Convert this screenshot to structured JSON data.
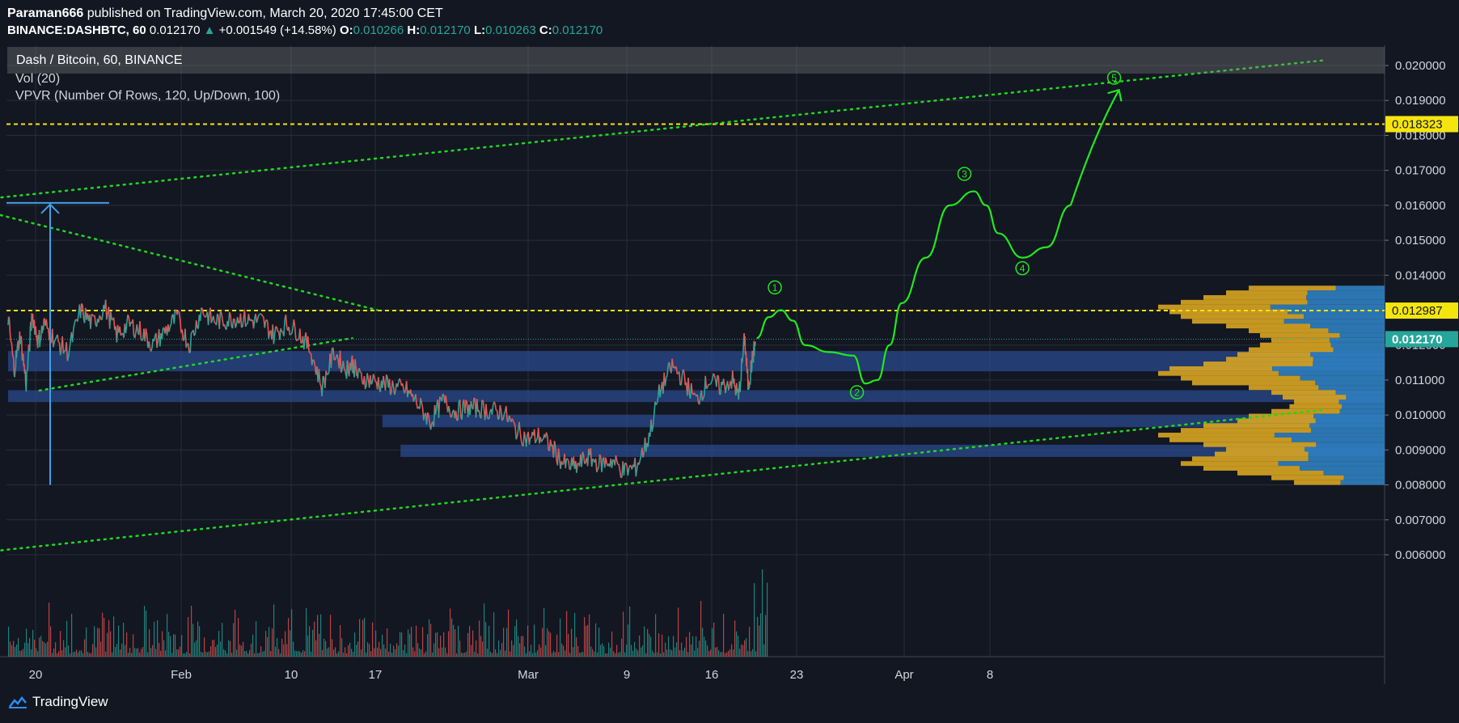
{
  "header": {
    "author": "Paraman666",
    "published_text": " published on TradingView.com, March 20, 2020 17:45:00 CET",
    "symbol": "BINANCE:DASHBTC, 60",
    "last": "0.012170",
    "change": "+0.001549 (+14.58%)",
    "o_label": "O:",
    "o_value": "0.010266",
    "h_label": "H:",
    "h_value": "0.012170",
    "l_label": "L:",
    "l_value": "0.010263",
    "c_label": "C:",
    "c_value": "0.012170"
  },
  "legend": {
    "main": "Dash / Bitcoin, 60, BINANCE",
    "vol": "Vol (20)",
    "vpvr": "VPVR (Number Of Rows, 120, Up/Down, 100)"
  },
  "footer": {
    "brand": "TradingView"
  },
  "colors": {
    "background": "#131722",
    "grid": "#2a2e39",
    "up": "#26a69a",
    "down": "#ef5350",
    "projection": "#22e81e",
    "trendline": "#1fd81f",
    "level": "#f5e50f",
    "zone": "#2a4a8c",
    "vpvr_up": "#d9a521",
    "vpvr_down": "#2f7fc1",
    "measure": "#3f9fe8"
  },
  "chart_data": {
    "type": "line",
    "symbol": "DASHBTC",
    "interval": "60",
    "y_range": [
      0.0055,
      0.0203
    ],
    "y_ticks": [
      "0.020000",
      "0.019000",
      "0.018000",
      "0.017000",
      "0.016000",
      "0.015000",
      "0.014000",
      "0.013000",
      "0.012000",
      "0.011000",
      "0.010000",
      "0.009000",
      "0.008000",
      "0.007000",
      "0.006000"
    ],
    "x_ticks": [
      "20",
      "Feb",
      "10",
      "17",
      "Mar",
      "9",
      "16",
      "23",
      "Apr",
      "8"
    ],
    "price_labels": [
      {
        "value": "0.018323",
        "kind": "level"
      },
      {
        "value": "0.012987",
        "kind": "level"
      },
      {
        "value": "0.012170",
        "kind": "last"
      }
    ],
    "price_path": {
      "x_days": [
        0,
        0.5,
        1,
        1.5,
        2,
        2.5,
        3,
        4,
        5,
        6,
        7,
        8,
        9,
        10,
        11,
        12,
        13,
        14,
        15,
        16,
        17,
        18,
        19,
        20,
        21,
        22,
        23,
        24,
        25,
        26,
        27,
        28,
        28.5,
        29,
        30,
        31,
        32,
        33,
        34,
        35,
        36,
        37,
        38,
        39,
        40,
        41,
        42,
        43,
        44,
        45,
        46,
        47,
        48,
        49,
        50,
        51,
        52,
        53,
        54,
        55,
        56,
        57,
        58,
        59,
        60,
        60.5,
        61,
        61.3,
        61.6,
        61.9
      ],
      "close": [
        0.0128,
        0.0113,
        0.0123,
        0.0109,
        0.0129,
        0.0121,
        0.0126,
        0.0121,
        0.0118,
        0.013,
        0.0126,
        0.0131,
        0.0123,
        0.0126,
        0.0124,
        0.012,
        0.0124,
        0.0128,
        0.012,
        0.013,
        0.0127,
        0.0127,
        0.0128,
        0.0127,
        0.0127,
        0.0123,
        0.0126,
        0.0124,
        0.0119,
        0.0108,
        0.0118,
        0.0113,
        0.0115,
        0.0111,
        0.011,
        0.0109,
        0.0108,
        0.0107,
        0.0103,
        0.0098,
        0.0104,
        0.0101,
        0.0102,
        0.0102,
        0.0101,
        0.0101,
        0.0096,
        0.0093,
        0.0094,
        0.0091,
        0.0086,
        0.0085,
        0.0088,
        0.0086,
        0.0087,
        0.0084,
        0.0085,
        0.0093,
        0.0107,
        0.0114,
        0.011,
        0.0104,
        0.011,
        0.0108,
        0.011,
        0.0105,
        0.0122,
        0.0108,
        0.0115,
        0.0121
      ]
    },
    "volume_range": [
      0,
      1
    ],
    "projection_path": {
      "x_days": [
        62,
        63,
        64,
        65,
        66,
        68,
        70,
        71,
        72,
        73,
        74,
        76,
        78,
        80,
        81,
        82,
        84,
        86,
        88
      ],
      "y": [
        0.0122,
        0.0128,
        0.013,
        0.0127,
        0.012,
        0.0118,
        0.0117,
        0.0109,
        0.011,
        0.012,
        0.0132,
        0.0145,
        0.016,
        0.0164,
        0.016,
        0.0152,
        0.0145,
        0.0148,
        0.016
      ]
    },
    "projection_tail": {
      "x_days": [
        88,
        90,
        92
      ],
      "y": [
        0.016,
        0.0176,
        0.0193
      ]
    },
    "wave_labels": [
      {
        "label": "1",
        "x_day": 63.5,
        "y": 0.01365
      },
      {
        "label": "2",
        "x_day": 70.3,
        "y": 0.01065
      },
      {
        "label": "3",
        "x_day": 79.2,
        "y": 0.0169
      },
      {
        "label": "4",
        "x_day": 84.0,
        "y": 0.0142
      },
      {
        "label": "5",
        "x_day": 91.6,
        "y": 0.01965
      }
    ],
    "horizontal_levels": [
      0.018323,
      0.012987
    ],
    "last_price_line": 0.01217,
    "zones": [
      {
        "from_day": 0,
        "y_low": 0.01125,
        "y_high": 0.01183
      },
      {
        "from_day": 0,
        "y_low": 0.01037,
        "y_high": 0.01071
      },
      {
        "from_day": 31,
        "y_low": 0.00965,
        "y_high": 0.01
      },
      {
        "from_day": 32.5,
        "y_low": 0.0088,
        "y_high": 0.00915
      }
    ],
    "trendlines": [
      {
        "style": "dotted",
        "from": {
          "x_day": -2.7,
          "y": 0.01615
        },
        "to": {
          "x_day": 109,
          "y": 0.02015
        }
      },
      {
        "style": "dotted",
        "from": {
          "x_day": -2.7,
          "y": 0.0159
        },
        "to": {
          "x_day": 30.6,
          "y": 0.013
        }
      },
      {
        "style": "dotted",
        "from": {
          "x_day": 2.6,
          "y": 0.0107
        },
        "to": {
          "x_day": 28.5,
          "y": 0.0122
        }
      },
      {
        "style": "dotted",
        "from": {
          "x_day": -2.7,
          "y": 0.00605
        },
        "to": {
          "x_day": 109,
          "y": 0.01015
        }
      }
    ],
    "measure_arrow": {
      "x_day": 1.0,
      "y_bottom": 0.008,
      "y_top": 0.01607
    },
    "vpvr": {
      "y_low": 0.008,
      "y_high": 0.0137,
      "total": [
        0.6,
        0.7,
        0.8,
        0.9,
        1.0,
        0.95,
        0.9,
        0.85,
        0.7,
        0.6,
        0.55,
        0.5,
        0.55,
        0.6,
        0.65,
        0.7,
        0.8,
        0.95,
        1.0,
        0.9,
        0.85,
        0.6,
        0.5,
        0.45,
        0.4,
        0.42,
        0.5,
        0.6,
        0.65,
        0.8,
        0.9,
        1.0,
        0.95,
        0.8,
        0.7,
        0.75,
        0.85,
        0.9,
        0.8,
        0.65,
        0.5,
        0.4
      ],
      "up_ratio": 0.45
    }
  }
}
